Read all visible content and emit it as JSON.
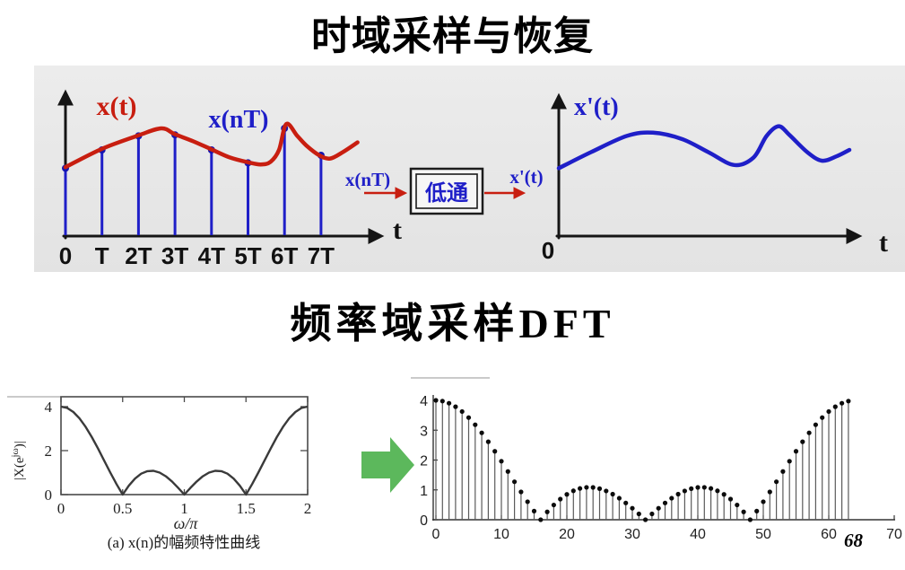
{
  "colors": {
    "red": "#c81e10",
    "blue": "#1f1fc8",
    "blue_dark": "#1515b0",
    "green": "#5cb85c",
    "band_top": "#ececec",
    "band_bottom": "#e3e3e3",
    "axis": "#151515",
    "curve_gray": "#3a3a3a",
    "stem_gray": "#5a5a5a",
    "dot_black": "#0c0c0c"
  },
  "titles": {
    "top": "时域采样与恢复",
    "middle": "频率域采样DFT"
  },
  "page": {
    "number": "68"
  },
  "sampling_diagram": {
    "left": {
      "curve_label": "x(t)",
      "samples_label": "x(nT)",
      "axis_label": "t",
      "tick_labels": [
        "0",
        "T",
        "2T",
        "3T",
        "4T",
        "5T",
        "6T",
        "7T"
      ],
      "stem_heights": [
        0.63,
        0.8,
        0.93,
        0.94,
        0.8,
        0.68,
        1.0,
        0.75
      ],
      "curve_points": [
        [
          0,
          0.64
        ],
        [
          1,
          0.81
        ],
        [
          2,
          0.935
        ],
        [
          2.63,
          1.0
        ],
        [
          3,
          0.945
        ],
        [
          3.5,
          0.88
        ],
        [
          4,
          0.805
        ],
        [
          4.5,
          0.73
        ],
        [
          5,
          0.685
        ],
        [
          5.35,
          0.665
        ],
        [
          5.62,
          0.69
        ],
        [
          5.85,
          0.8
        ],
        [
          6.05,
          1.04
        ],
        [
          6.35,
          0.93
        ],
        [
          6.6,
          0.84
        ],
        [
          6.95,
          0.75
        ],
        [
          7.25,
          0.72
        ],
        [
          7.6,
          0.78
        ],
        [
          8.0,
          0.87
        ]
      ]
    },
    "filter": {
      "input_label": "x(nT)",
      "block_label": "低通",
      "output_label": "x'(t)"
    },
    "right": {
      "title": "x'(t)",
      "origin_label": "0",
      "axis_label": "t",
      "curve_points": [
        [
          0,
          0.63
        ],
        [
          0.1,
          0.78
        ],
        [
          0.21,
          0.93
        ],
        [
          0.29,
          0.96
        ],
        [
          0.38,
          0.9
        ],
        [
          0.46,
          0.78
        ],
        [
          0.54,
          0.66
        ],
        [
          0.6,
          0.73
        ],
        [
          0.64,
          0.93
        ],
        [
          0.677,
          1.02
        ],
        [
          0.71,
          0.94
        ],
        [
          0.765,
          0.78
        ],
        [
          0.81,
          0.7
        ],
        [
          0.855,
          0.74
        ],
        [
          0.895,
          0.8
        ]
      ]
    }
  },
  "chart_data": [
    {
      "type": "line",
      "title": "",
      "xlabel": "ω/π",
      "ylabel": "|X(e^jω)|",
      "ylabel_parts": [
        "|X(e",
        "jω",
        ")|"
      ],
      "caption": "(a) x(n)的幅频特性曲线",
      "x_start": 0,
      "x_step": 0.05,
      "y": [
        4.0,
        3.939,
        3.757,
        3.466,
        3.078,
        2.613,
        2.095,
        1.548,
        1.0,
        0.476,
        0.0,
        0.406,
        0.727,
        0.949,
        1.067,
        1.082,
        1.0,
        0.832,
        0.595,
        0.31,
        0.0,
        0.31,
        0.595,
        0.832,
        1.0,
        1.082,
        1.067,
        0.949,
        0.727,
        0.406,
        0.0,
        0.476,
        1.0,
        1.548,
        2.095,
        2.613,
        3.078,
        3.466,
        3.757,
        3.939,
        4.0
      ],
      "xticks": [
        0,
        0.5,
        1,
        1.5,
        2
      ],
      "xtick_labels": [
        "0",
        "0.5",
        "1",
        "1.5",
        "2"
      ],
      "yticks": [
        0,
        2,
        4
      ],
      "ytick_labels": [
        "0",
        "2",
        "4"
      ],
      "xlim": [
        0,
        2
      ],
      "ylim": [
        0,
        4.45
      ],
      "grid": false
    },
    {
      "type": "stem",
      "x_start": 0,
      "x_step": 1,
      "values": [
        4.0,
        3.976,
        3.904,
        3.786,
        3.625,
        3.422,
        3.183,
        2.911,
        2.613,
        2.294,
        1.96,
        1.617,
        1.273,
        0.933,
        0.603,
        0.29,
        0.0,
        0.263,
        0.495,
        0.692,
        0.85,
        0.969,
        1.048,
        1.085,
        1.082,
        1.042,
        0.965,
        0.857,
        0.721,
        0.562,
        0.385,
        0.195,
        0.0,
        0.195,
        0.385,
        0.562,
        0.721,
        0.857,
        0.965,
        1.042,
        1.082,
        1.085,
        1.048,
        0.969,
        0.85,
        0.692,
        0.495,
        0.263,
        0.0,
        0.29,
        0.603,
        0.933,
        1.273,
        1.617,
        1.96,
        2.294,
        2.613,
        2.911,
        3.183,
        3.422,
        3.625,
        3.786,
        3.904,
        3.976
      ],
      "xticks": [
        0,
        10,
        20,
        30,
        40,
        50,
        60,
        70
      ],
      "xtick_labels": [
        "0",
        "10",
        "20",
        "30",
        "40",
        "50",
        "60",
        "70"
      ],
      "yticks": [
        0,
        1,
        2,
        3,
        4
      ],
      "ytick_labels": [
        "0",
        "1",
        "2",
        "3",
        "4"
      ],
      "xlim": [
        0,
        70
      ],
      "ylim": [
        0,
        4.2
      ],
      "grid": false
    }
  ]
}
